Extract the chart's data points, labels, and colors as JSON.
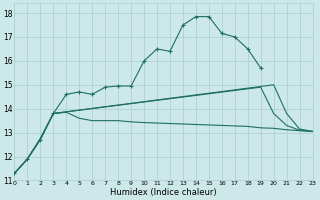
{
  "xlabel": "Humidex (Indice chaleur)",
  "xlim": [
    0,
    23
  ],
  "ylim": [
    11,
    18.4
  ],
  "yticks": [
    11,
    12,
    13,
    14,
    15,
    16,
    17,
    18
  ],
  "xticks": [
    0,
    1,
    2,
    3,
    4,
    5,
    6,
    7,
    8,
    9,
    10,
    11,
    12,
    13,
    14,
    15,
    16,
    17,
    18,
    19,
    20,
    21,
    22,
    23
  ],
  "bg_color": "#cce8e8",
  "grid_color": "#aacece",
  "line_color": "#1e6e64",
  "line1_x": [
    0,
    1,
    2,
    3,
    4,
    5,
    6,
    7,
    8,
    9,
    10,
    11,
    12,
    13,
    14,
    15,
    16,
    17,
    18,
    19
  ],
  "line1_y": [
    11.3,
    11.9,
    12.7,
    13.8,
    14.6,
    14.7,
    14.6,
    14.9,
    14.95,
    14.95,
    16.0,
    16.5,
    16.4,
    17.5,
    17.85,
    17.85,
    17.15,
    17.0,
    16.5,
    15.7
  ],
  "line2_x": [
    0,
    1,
    2,
    3,
    4,
    5,
    6,
    7,
    8,
    9,
    10,
    11,
    12,
    13,
    14,
    15,
    16,
    17,
    18,
    19,
    20,
    21,
    22,
    23
  ],
  "line2_y": [
    11.3,
    11.9,
    12.75,
    13.8,
    13.85,
    13.6,
    13.5,
    13.5,
    13.5,
    13.45,
    13.42,
    13.4,
    13.38,
    13.36,
    13.34,
    13.32,
    13.3,
    13.28,
    13.26,
    13.2,
    13.18,
    13.12,
    13.08,
    13.05
  ],
  "line3_x": [
    0,
    1,
    2,
    3,
    19,
    20,
    21,
    22,
    23
  ],
  "line3_y": [
    11.3,
    11.9,
    12.75,
    13.8,
    14.9,
    13.8,
    13.3,
    13.1,
    13.05
  ],
  "line4_x": [
    0,
    1,
    2,
    3,
    20,
    21,
    22,
    23
  ],
  "line4_y": [
    11.3,
    11.9,
    12.75,
    13.8,
    15.0,
    13.8,
    13.15,
    13.05
  ]
}
